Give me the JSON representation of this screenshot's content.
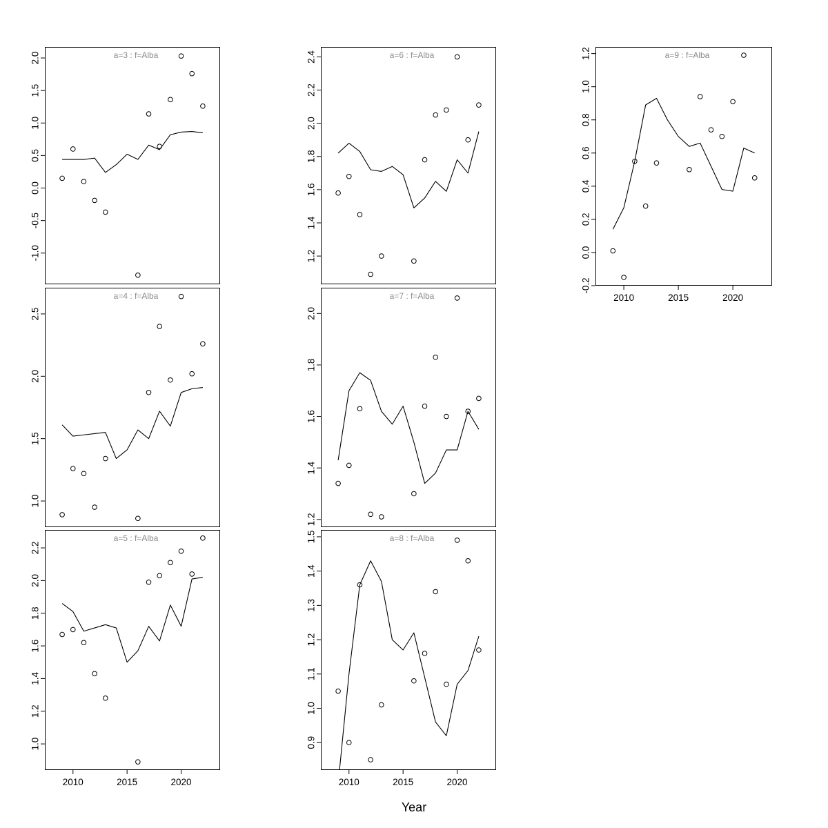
{
  "figure": {
    "xlabel": "Year",
    "background": "#ffffff",
    "axis_color": "#000000",
    "line_color": "#000000",
    "point_color": "#000000",
    "title_color": "#8a8a8a"
  },
  "chart_data": {
    "type": "scatter",
    "description_title": "Lattice of observed points (circles) and fitted lines by age group a, fleet f=Alba",
    "xlabel": "Year",
    "xlim": [
      2007.4,
      2023.6
    ],
    "x_ticks": [
      2010,
      2015,
      2020
    ],
    "x_tick_labels": [
      "2010",
      "2015",
      "2020"
    ],
    "point_years": [
      2009,
      2010,
      2011,
      2012,
      2013,
      2016,
      2017,
      2018,
      2019,
      2020,
      2021,
      2022
    ],
    "line_years": [
      2009,
      2010,
      2011,
      2012,
      2013,
      2014,
      2015,
      2016,
      2017,
      2018,
      2019,
      2020,
      2021,
      2022
    ],
    "panels": [
      {
        "key": "a3",
        "title": "a=3 : f=Alba",
        "show_xaxis": false,
        "ylim": [
          -1.48,
          2.17
        ],
        "yticks": [
          -1.0,
          -0.5,
          0.0,
          0.5,
          1.0,
          1.5,
          2.0
        ],
        "points": [
          0.15,
          0.6,
          0.1,
          -0.19,
          -0.37,
          -1.34,
          1.14,
          0.64,
          1.36,
          2.03,
          1.76,
          1.26
        ],
        "line": [
          0.44,
          0.44,
          0.44,
          0.46,
          0.24,
          0.36,
          0.52,
          0.44,
          0.66,
          0.59,
          0.82,
          0.86,
          0.87,
          0.85
        ]
      },
      {
        "key": "a6",
        "title": "a=6 : f=Alba",
        "show_xaxis": false,
        "ylim": [
          1.03,
          2.46
        ],
        "yticks": [
          1.2,
          1.4,
          1.6,
          1.8,
          2.0,
          2.2,
          2.4
        ],
        "points": [
          1.58,
          1.68,
          1.45,
          1.09,
          1.2,
          1.17,
          1.78,
          2.05,
          2.08,
          2.4,
          1.9,
          2.11
        ],
        "line": [
          1.82,
          1.88,
          1.83,
          1.72,
          1.71,
          1.74,
          1.69,
          1.49,
          1.55,
          1.65,
          1.59,
          1.78,
          1.7,
          1.95
        ]
      },
      {
        "key": "a9",
        "title": "a=9 : f=Alba",
        "show_xaxis": true,
        "ylim": [
          -0.2,
          1.24
        ],
        "yticks": [
          -0.2,
          0.0,
          0.2,
          0.4,
          0.6,
          0.8,
          1.0,
          1.2
        ],
        "points": [
          0.01,
          -0.15,
          0.55,
          0.28,
          0.54,
          0.5,
          0.94,
          0.74,
          0.7,
          0.91,
          1.19,
          0.45
        ],
        "line": [
          0.14,
          0.27,
          0.55,
          0.89,
          0.93,
          0.8,
          0.7,
          0.64,
          0.66,
          0.52,
          0.38,
          0.37,
          0.63,
          0.6
        ]
      },
      {
        "key": "a4",
        "title": "a=4 : f=Alba",
        "show_xaxis": false,
        "ylim": [
          0.79,
          2.71
        ],
        "yticks": [
          1.0,
          1.5,
          2.0,
          2.5
        ],
        "points": [
          0.89,
          1.26,
          1.22,
          0.95,
          1.34,
          0.86,
          1.87,
          2.4,
          1.97,
          2.64,
          2.02,
          2.26
        ],
        "line": [
          1.61,
          1.52,
          1.53,
          1.54,
          1.55,
          1.34,
          1.41,
          1.57,
          1.5,
          1.72,
          1.6,
          1.87,
          1.9,
          1.91
        ]
      },
      {
        "key": "a7",
        "title": "a=7 : f=Alba",
        "show_xaxis": false,
        "ylim": [
          1.17,
          2.1
        ],
        "yticks": [
          1.2,
          1.4,
          1.6,
          1.8,
          2.0
        ],
        "points": [
          1.34,
          1.41,
          1.63,
          1.22,
          1.21,
          1.3,
          1.64,
          1.83,
          1.6,
          2.06,
          1.62,
          1.67
        ],
        "line": [
          1.43,
          1.7,
          1.77,
          1.74,
          1.62,
          1.57,
          1.64,
          1.5,
          1.34,
          1.38,
          1.47,
          1.47,
          1.62,
          1.55
        ]
      },
      {
        "key": "a5",
        "title": "a=5 : f=Alba",
        "show_xaxis": true,
        "ylim": [
          0.84,
          2.31
        ],
        "yticks": [
          1.0,
          1.2,
          1.4,
          1.6,
          1.8,
          2.0,
          2.2
        ],
        "points": [
          1.67,
          1.7,
          1.62,
          1.43,
          1.28,
          0.89,
          1.99,
          2.03,
          2.11,
          2.18,
          2.04,
          2.26
        ],
        "line": [
          1.86,
          1.81,
          1.69,
          1.71,
          1.73,
          1.71,
          1.5,
          1.57,
          1.72,
          1.63,
          1.85,
          1.72,
          2.01,
          2.02
        ]
      },
      {
        "key": "a8",
        "title": "a=8 : f=Alba",
        "show_xaxis": true,
        "ylim": [
          0.82,
          1.52
        ],
        "yticks": [
          0.9,
          1.0,
          1.1,
          1.2,
          1.3,
          1.4,
          1.5
        ],
        "points": [
          1.05,
          0.9,
          1.36,
          0.85,
          1.01,
          1.08,
          1.16,
          1.34,
          1.07,
          1.49,
          1.43,
          1.17
        ],
        "line": [
          0.78,
          1.1,
          1.36,
          1.43,
          1.37,
          1.2,
          1.17,
          1.22,
          1.09,
          0.96,
          0.92,
          1.07,
          1.11,
          1.21
        ]
      }
    ]
  }
}
